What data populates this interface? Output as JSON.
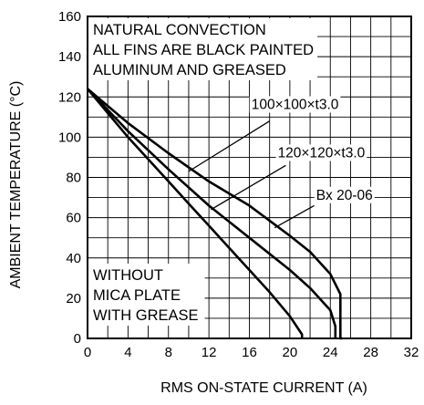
{
  "chart_data": {
    "type": "line",
    "title": "",
    "xlabel": "RMS ON-STATE CURRENT  (A)",
    "ylabel": "AMBIENT TEMPERATURE  (°C)",
    "xlim": [
      0,
      32
    ],
    "ylim": [
      0,
      160
    ],
    "x_ticks": [
      "0",
      "4",
      "8",
      "12",
      "16",
      "20",
      "24",
      "28",
      "32"
    ],
    "y_ticks": [
      "0",
      "20",
      "40",
      "60",
      "80",
      "100",
      "120",
      "140",
      "160"
    ],
    "grid": true,
    "notes": {
      "top": [
        "NATURAL CONVECTION",
        "ALL FINS ARE BLACK PAINTED",
        "ALUMINUM AND GREASED"
      ],
      "bottom": [
        "WITHOUT",
        "MICA PLATE",
        "WITH GREASE"
      ]
    },
    "series": [
      {
        "name": "100×100×t3.0",
        "x": [
          0,
          2,
          4,
          6,
          8,
          10,
          12,
          14,
          16,
          18,
          20,
          21.2,
          21.2
        ],
        "y": [
          124,
          112,
          100,
          89,
          78,
          67,
          56,
          45,
          34,
          23,
          11,
          2,
          0
        ]
      },
      {
        "name": "120×120×t3.0",
        "x": [
          0,
          4,
          8,
          12,
          16,
          20,
          22,
          24,
          24.5,
          24.5
        ],
        "y": [
          124,
          103,
          84,
          66,
          50,
          34,
          25,
          14,
          6,
          0
        ]
      },
      {
        "name": "Bx 20-06",
        "x": [
          0,
          4,
          8,
          12,
          16,
          20,
          22,
          24,
          25,
          25,
          25.2
        ],
        "y": [
          124,
          107,
          92,
          78,
          66,
          51,
          43,
          32,
          22,
          0,
          0
        ]
      }
    ]
  }
}
